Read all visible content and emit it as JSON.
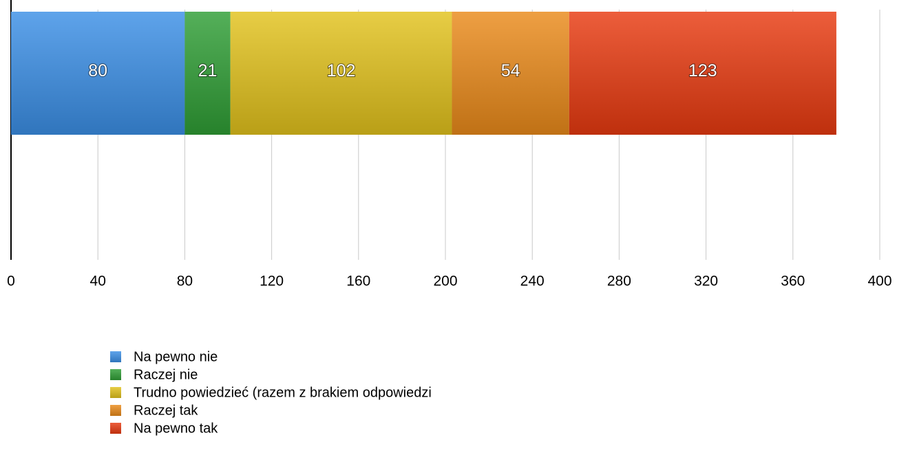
{
  "chart_data": {
    "type": "stacked-bar-horizontal",
    "categories": [
      null
    ],
    "series": [
      {
        "name": "Na pewno nie",
        "color": "#3b8fe6",
        "values": [
          80
        ]
      },
      {
        "name": "Raczej nie",
        "color": "#2f9e35",
        "values": [
          21
        ]
      },
      {
        "name": "Trudno powiedzieć (razem z brakiem odpowiedzi",
        "color": "#e2c21c",
        "values": [
          102
        ]
      },
      {
        "name": "Raczej tak",
        "color": "#ea8a1a",
        "values": [
          54
        ]
      },
      {
        "name": "Na pewno tak",
        "color": "#e83a10",
        "values": [
          123
        ]
      }
    ],
    "xlim": [
      0,
      400
    ],
    "xticks": [
      0,
      40,
      80,
      120,
      160,
      200,
      240,
      280,
      320,
      360,
      400
    ],
    "grid": true
  }
}
